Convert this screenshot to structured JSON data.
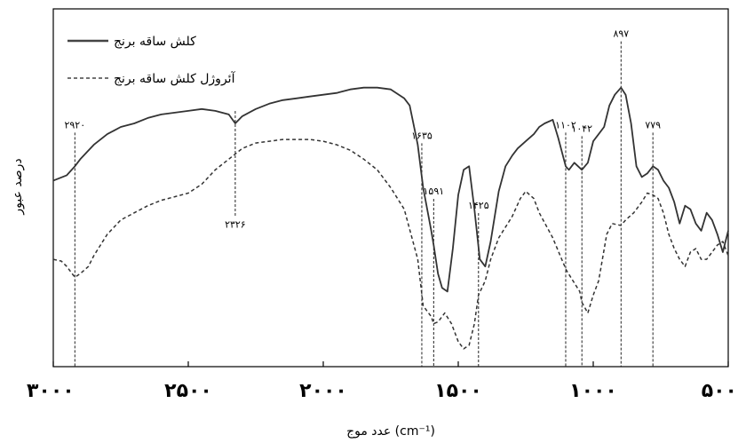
{
  "chart_data": {
    "type": "line",
    "xlabel": "عدد موج (cm⁻¹)",
    "ylabel": "درصد عبور",
    "xlim": [
      3000,
      500
    ],
    "x_reversed": true,
    "grid": false,
    "legend_position": "top-left",
    "x_ticks": [
      {
        "value": 3000,
        "label": "۳۰۰۰"
      },
      {
        "value": 2500,
        "label": "۲۵۰۰"
      },
      {
        "value": 2000,
        "label": "۲۰۰۰"
      },
      {
        "value": 1500,
        "label": "۱۵۰۰"
      },
      {
        "value": 1000,
        "label": "۱۰۰۰"
      },
      {
        "value": 500,
        "label": "۵۰۰"
      }
    ],
    "series": [
      {
        "name": "کلش ساقه برنج",
        "style": "solid",
        "color": "#333333",
        "x": [
          3000,
          2950,
          2920,
          2900,
          2850,
          2800,
          2750,
          2700,
          2650,
          2600,
          2550,
          2500,
          2450,
          2400,
          2350,
          2326,
          2300,
          2250,
          2200,
          2150,
          2100,
          2050,
          2000,
          1950,
          1900,
          1850,
          1800,
          1750,
          1700,
          1680,
          1650,
          1630,
          1600,
          1591,
          1575,
          1560,
          1540,
          1520,
          1500,
          1480,
          1460,
          1440,
          1420,
          1400,
          1380,
          1350,
          1325,
          1300,
          1280,
          1250,
          1220,
          1200,
          1180,
          1150,
          1130,
          1102,
          1090,
          1070,
          1042,
          1020,
          1000,
          980,
          960,
          940,
          920,
          897,
          880,
          860,
          840,
          820,
          800,
          779,
          760,
          740,
          720,
          700,
          680,
          660,
          640,
          620,
          600,
          580,
          560,
          540,
          520,
          500
        ],
        "y": [
          52,
          53.5,
          56,
          58,
          62,
          65,
          67,
          68,
          69.5,
          70.5,
          71,
          71.5,
          72,
          71.5,
          70.5,
          68,
          70,
          72,
          73.5,
          74.5,
          75,
          75.5,
          76,
          76.5,
          77.5,
          78,
          78,
          77.5,
          75,
          73,
          62,
          50,
          38,
          34,
          26,
          22,
          21,
          33,
          48,
          55,
          56,
          44,
          30,
          28,
          35,
          49,
          56,
          59,
          61,
          63,
          65,
          67,
          68,
          69,
          64,
          56,
          55,
          57,
          55,
          57,
          63,
          65,
          67,
          73,
          76,
          78,
          76,
          68,
          56,
          53,
          54,
          56,
          55,
          52,
          50,
          46,
          40,
          45,
          44,
          40,
          38,
          43,
          41,
          37,
          32,
          38
        ],
        "peaks": [
          {
            "x": 2920,
            "label": "۲۹۲۰",
            "label_pos": "above"
          },
          {
            "x": 2326,
            "label": "۲۳۲۶",
            "label_pos": "below"
          },
          {
            "x": 1635,
            "label": "۱۶۳۵",
            "label_pos": "above"
          },
          {
            "x": 1591,
            "label": "۱۵۹۱",
            "label_pos": "above"
          },
          {
            "x": 1425,
            "label": "۱۴۲۵",
            "label_pos": "above"
          },
          {
            "x": 1102,
            "label": "۱۱۰۲",
            "label_pos": "above"
          },
          {
            "x": 1042,
            "label": "۱۰۴۲",
            "label_pos": "above"
          },
          {
            "x": 897,
            "label": "۸۹۷",
            "label_pos": "above"
          },
          {
            "x": 779,
            "label": "۷۷۹",
            "label_pos": "above"
          }
        ]
      },
      {
        "name": "آئروژل کلش ساقه برنج",
        "style": "dashed",
        "color": "#333333",
        "x": [
          3000,
          2970,
          2950,
          2920,
          2900,
          2870,
          2850,
          2800,
          2750,
          2700,
          2650,
          2600,
          2550,
          2500,
          2450,
          2400,
          2350,
          2300,
          2250,
          2200,
          2150,
          2100,
          2050,
          2000,
          1950,
          1900,
          1850,
          1800,
          1750,
          1700,
          1650,
          1630,
          1600,
          1591,
          1575,
          1550,
          1525,
          1500,
          1480,
          1460,
          1440,
          1425,
          1400,
          1380,
          1350,
          1300,
          1270,
          1250,
          1220,
          1200,
          1150,
          1100,
          1050,
          1042,
          1020,
          1000,
          980,
          950,
          930,
          900,
          897,
          880,
          850,
          820,
          800,
          779,
          760,
          740,
          720,
          700,
          680,
          660,
          640,
          620,
          600,
          580,
          560,
          540,
          520,
          500
        ],
        "y": [
          30,
          29.5,
          28,
          25,
          26,
          28,
          31,
          37,
          41,
          43,
          45,
          46.5,
          47.5,
          48.5,
          51,
          55,
          58,
          61,
          62.5,
          63,
          63.5,
          63.5,
          63.5,
          63,
          62,
          60.5,
          58,
          55,
          50,
          44,
          30,
          17,
          14,
          12,
          12.5,
          15,
          12,
          7,
          5,
          6,
          12,
          20,
          24,
          30,
          36,
          42,
          47,
          49,
          47,
          43,
          36,
          27,
          21,
          18,
          15,
          20,
          24,
          37,
          40,
          39.5,
          39.5,
          41,
          43,
          46,
          48.5,
          48,
          47,
          43,
          37,
          33,
          30,
          28,
          32,
          33,
          30,
          30,
          32,
          34,
          35,
          31
        ],
        "peaks": []
      }
    ]
  }
}
